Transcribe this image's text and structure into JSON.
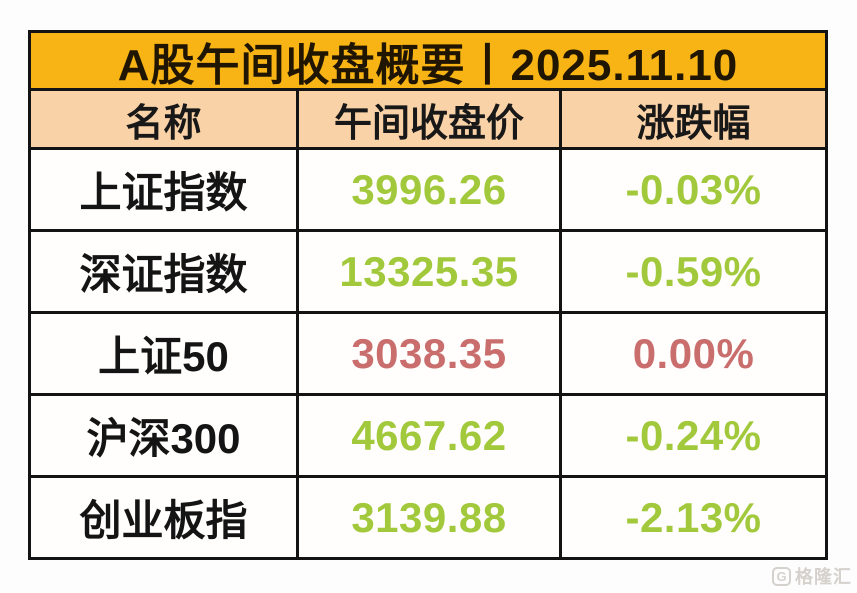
{
  "colors": {
    "title_bg": "#f7b414",
    "header_bg": "#fad2a7",
    "down_green": "#a2c93c",
    "up_red": "#c96d6d",
    "border": "#131313",
    "watermark": "#d5d2cd"
  },
  "table": {
    "title": "A股午间收盘概要丨2025.11.10",
    "columns": [
      "名称",
      "午间收盘价",
      "涨跌幅"
    ],
    "rows": [
      {
        "name": "上证指数",
        "price": "3996.26",
        "change": "-0.03%",
        "color": "#a2c93c"
      },
      {
        "name": "深证指数",
        "price": "13325.35",
        "change": "-0.59%",
        "color": "#a2c93c"
      },
      {
        "name": "上证50",
        "price": "3038.35",
        "change": "0.00%",
        "color": "#c96d6d"
      },
      {
        "name": "沪深300",
        "price": "4667.62",
        "change": "-0.24%",
        "color": "#a2c93c"
      },
      {
        "name": "创业板指",
        "price": "3139.88",
        "change": "-2.13%",
        "color": "#a2c93c"
      }
    ]
  },
  "watermark": {
    "logo": "G",
    "text": "格隆汇"
  },
  "chart_data": {
    "type": "table",
    "title": "A股午间收盘概要丨2025.11.10",
    "date": "2025.11.10",
    "columns": [
      "名称",
      "午间收盘价",
      "涨跌幅"
    ],
    "rows": [
      [
        "上证指数",
        3996.26,
        "-0.03%"
      ],
      [
        "深证指数",
        13325.35,
        "-0.59%"
      ],
      [
        "上证50",
        3038.35,
        "0.00%"
      ],
      [
        "沪深300",
        4667.62,
        "-0.24%"
      ],
      [
        "创业板指",
        3139.88,
        "-2.13%"
      ]
    ],
    "value_color_rule": "green (#a2c93c) = decline, red (#c96d6d) = rise/flat"
  }
}
